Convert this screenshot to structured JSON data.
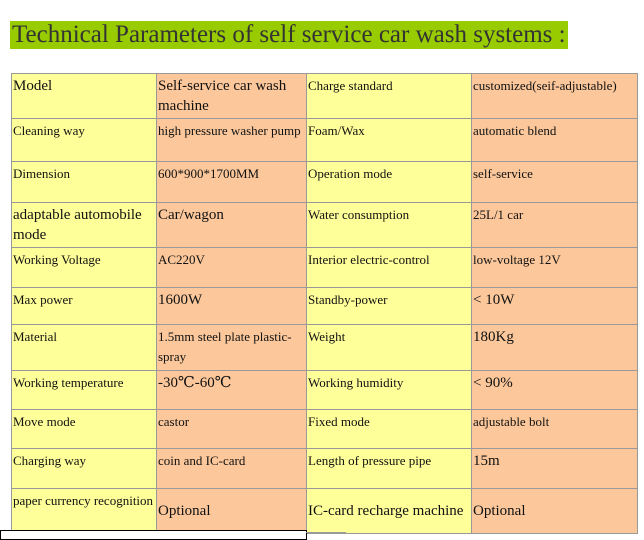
{
  "title": "Technical Parameters of self service car wash systems :",
  "colors": {
    "title_bg": "#99cc00",
    "cell_yellow": "#ffff99",
    "cell_orange": "#fcc89b"
  },
  "rows": [
    [
      "Model",
      "Self-service car wash machine",
      "Charge standard",
      "customized(seif-adjustable)"
    ],
    [
      "Cleaning way",
      "high pressure washer pump",
      "Foam/Wax",
      "automatic blend"
    ],
    [
      "Dimension",
      "600*900*1700MM",
      "Operation mode",
      "self-service"
    ],
    [
      "adaptable automobile mode",
      "Car/wagon",
      "Water consumption",
      "25L/1 car"
    ],
    [
      "Working Voltage",
      "AC220V",
      "Interior electric-control",
      "low-voltage 12V"
    ],
    [
      "Max power",
      "1600W",
      "Standby-power",
      "< 10W"
    ],
    [
      "Material",
      "1.5mm steel plate plastic-spray",
      "Weight",
      "180Kg"
    ],
    [
      "Working temperature",
      "-30℃-60℃",
      "Working humidity",
      "< 90%"
    ],
    [
      "Move mode",
      "castor",
      "Fixed mode",
      "adjustable bolt"
    ],
    [
      "Charging way",
      "coin and IC-card",
      "Length of pressure pipe",
      "15m"
    ],
    [
      "paper currency recognition",
      "Optional",
      "IC-card recharge machine",
      "Optional"
    ]
  ]
}
